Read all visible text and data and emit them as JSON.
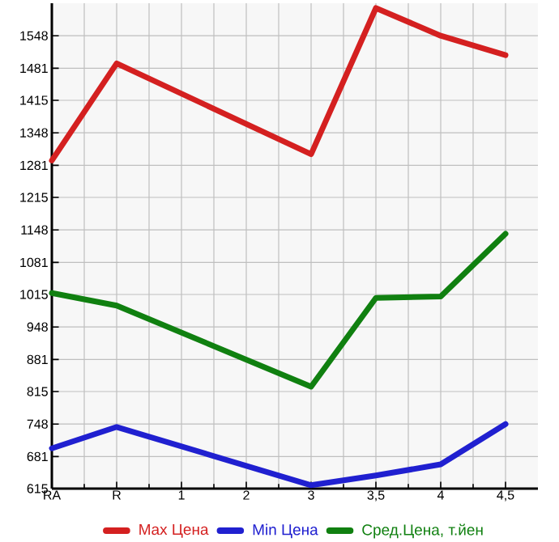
{
  "chart_data": {
    "type": "line",
    "categories": [
      "RA",
      "R",
      "1",
      "2",
      "3",
      "3,5",
      "4",
      "4,5"
    ],
    "series": [
      {
        "name": "Max Цена",
        "color": "#d42020",
        "values": [
          1291,
          1491,
          null,
          null,
          1304,
          1605,
          1548,
          1508
        ]
      },
      {
        "name": "Min Цена",
        "color": "#2020d0",
        "values": [
          698,
          742,
          null,
          null,
          622,
          642,
          665,
          748
        ]
      },
      {
        "name": "Сред.Цена, т.йен",
        "color": "#108010",
        "values": [
          1018,
          992,
          null,
          null,
          825,
          1008,
          1011,
          1140
        ]
      }
    ],
    "ylim": [
      615,
      1615
    ],
    "yticks": [
      615,
      681,
      748,
      815,
      881,
      948,
      1015,
      1081,
      1148,
      1215,
      1281,
      1348,
      1415,
      1481,
      1548
    ],
    "grid": true,
    "legend": "bottom",
    "marker": "none",
    "line_style": "solid"
  }
}
